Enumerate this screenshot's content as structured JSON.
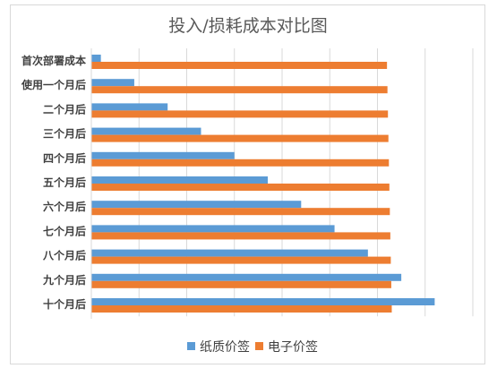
{
  "chart_data": {
    "type": "bar",
    "orientation": "horizontal",
    "title": "投入/损耗成本对比图",
    "categories": [
      "首次部署成本",
      "使用一个月后",
      "二个月后",
      "三个月后",
      "四个月后",
      "五个月后",
      "六个月后",
      "七个月后",
      "八个月后",
      "九个月后",
      "十个月后"
    ],
    "series": [
      {
        "name": "纸质价签",
        "color": "#5b9bd5",
        "values": [
          0.2,
          0.9,
          1.6,
          2.3,
          3.0,
          3.7,
          4.4,
          5.1,
          5.8,
          6.5,
          7.2
        ]
      },
      {
        "name": "电子价签",
        "color": "#ed7d31",
        "values": [
          6.2,
          6.21,
          6.22,
          6.23,
          6.24,
          6.25,
          6.26,
          6.27,
          6.28,
          6.29,
          6.3
        ]
      }
    ],
    "xlim": [
      0,
      8
    ],
    "grid": true,
    "legend_position": "bottom"
  }
}
